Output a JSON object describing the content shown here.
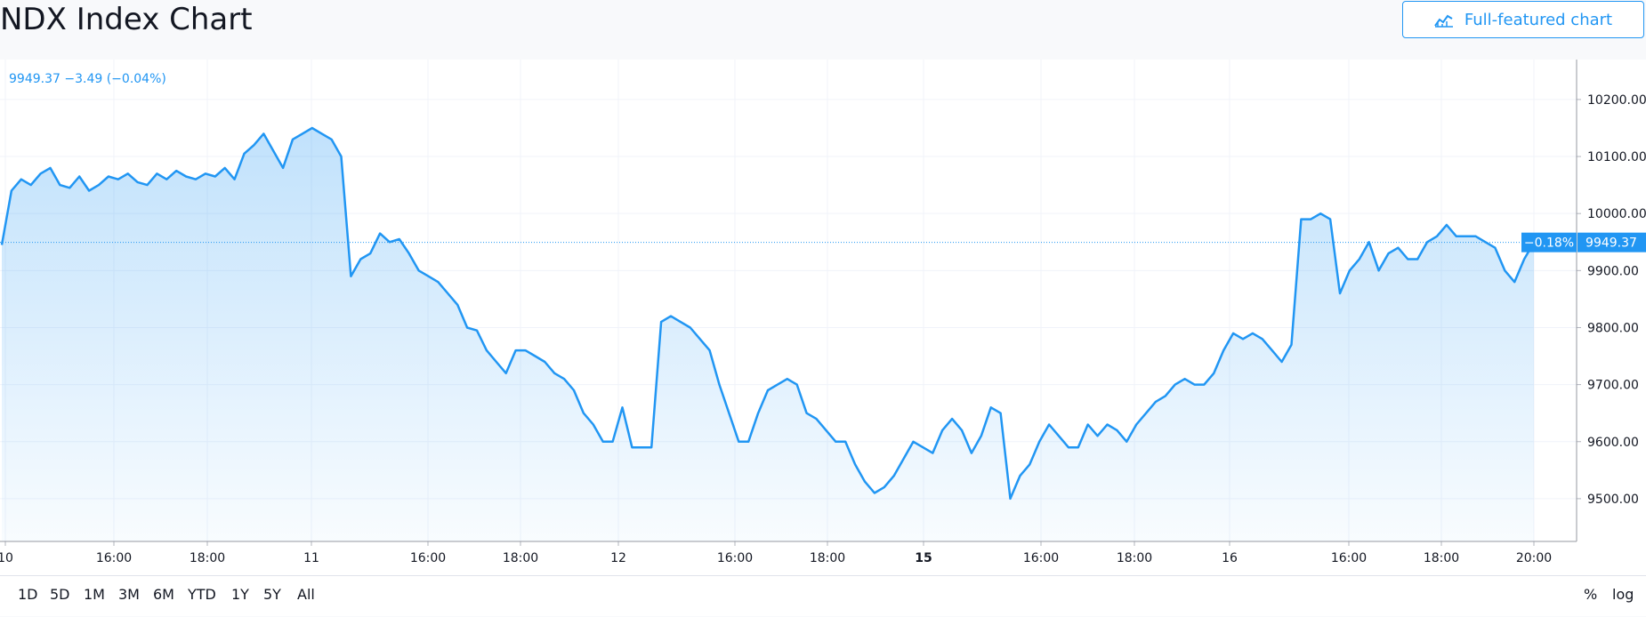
{
  "header": {
    "title": "NDX Index Chart",
    "full_chart_label": "Full-featured chart",
    "full_chart_icon": "chart-line-icon"
  },
  "legend": {
    "price": "9949.37",
    "change": "−3.49",
    "change_pct": "(−0.04%)"
  },
  "price_label": {
    "pct": "−0.18%",
    "value": "9949.37"
  },
  "timeframes": [
    "1D",
    "5D",
    "1M",
    "3M",
    "6M",
    "YTD",
    "1Y",
    "5Y",
    "All"
  ],
  "scale_options": [
    "%",
    "log"
  ],
  "colors": {
    "accent": "#2196f3",
    "grid": "#f0f3fa",
    "text": "#131722"
  },
  "chart_data": {
    "type": "area",
    "title": "",
    "xlabel": "",
    "ylabel": "",
    "ylim": [
      9425,
      10270
    ],
    "grid": true,
    "last_value": 9949.37,
    "y_ticks": [
      {
        "value": 10200,
        "label": "10200.00"
      },
      {
        "value": 10100,
        "label": "10100.00"
      },
      {
        "value": 10000,
        "label": "10000.00"
      },
      {
        "value": 9900,
        "label": "9900.00"
      },
      {
        "value": 9800,
        "label": "9800.00"
      },
      {
        "value": 9700,
        "label": "9700.00"
      },
      {
        "value": 9600,
        "label": "9600.00"
      },
      {
        "value": 9500,
        "label": "9500.00"
      }
    ],
    "x_ticks": [
      {
        "label": "10",
        "bold": false
      },
      {
        "label": "16:00",
        "bold": false
      },
      {
        "label": "18:00",
        "bold": false
      },
      {
        "label": "11",
        "bold": false
      },
      {
        "label": "16:00",
        "bold": false
      },
      {
        "label": "18:00",
        "bold": false
      },
      {
        "label": "12",
        "bold": false
      },
      {
        "label": "16:00",
        "bold": false
      },
      {
        "label": "18:00",
        "bold": false
      },
      {
        "label": "15",
        "bold": true
      },
      {
        "label": "16:00",
        "bold": false
      },
      {
        "label": "18:00",
        "bold": false
      },
      {
        "label": "16",
        "bold": false
      },
      {
        "label": "16:00",
        "bold": false
      },
      {
        "label": "18:00",
        "bold": false
      },
      {
        "label": "20:00",
        "bold": false
      }
    ],
    "series": [
      {
        "values": [
          9945,
          10040,
          10060,
          10050,
          10070,
          10080,
          10050,
          10045,
          10065,
          10040,
          10050,
          10065,
          10060,
          10070,
          10055,
          10050,
          10070,
          10060,
          10075,
          10065,
          10060,
          10070,
          10065,
          10080,
          10060,
          10105,
          10120,
          10140,
          10110,
          10080,
          10130,
          10140,
          10150,
          10140,
          10130,
          10100,
          9890,
          9920,
          9930,
          9965,
          9950,
          9955,
          9930,
          9900,
          9890,
          9880,
          9860,
          9840,
          9800,
          9795,
          9760,
          9740,
          9720,
          9760,
          9760,
          9750,
          9740,
          9720,
          9710,
          9690,
          9650,
          9630,
          9600,
          9600,
          9660,
          9590,
          9590,
          9590,
          9810,
          9820,
          9810,
          9800,
          9780,
          9760,
          9700,
          9650,
          9600,
          9600,
          9650,
          9690,
          9700,
          9710,
          9700,
          9650,
          9640,
          9620,
          9600,
          9600,
          9560,
          9530,
          9510,
          9520,
          9540,
          9570,
          9600,
          9590,
          9580,
          9620,
          9640,
          9620,
          9580,
          9610,
          9660,
          9650,
          9500,
          9540,
          9560,
          9600,
          9630,
          9610,
          9590,
          9590,
          9630,
          9610,
          9630,
          9620,
          9600,
          9630,
          9650,
          9670,
          9680,
          9700,
          9710,
          9700,
          9700,
          9720,
          9760,
          9790,
          9780,
          9790,
          9780,
          9760,
          9740,
          9770,
          9990,
          9990,
          10000,
          9990,
          9860,
          9900,
          9920,
          9950,
          9900,
          9930,
          9940,
          9920,
          9920,
          9950,
          9960,
          9980,
          9960,
          9960,
          9960,
          9950,
          9940,
          9900,
          9880,
          9920,
          9949.37
        ],
        "_note": ""
      }
    ]
  }
}
